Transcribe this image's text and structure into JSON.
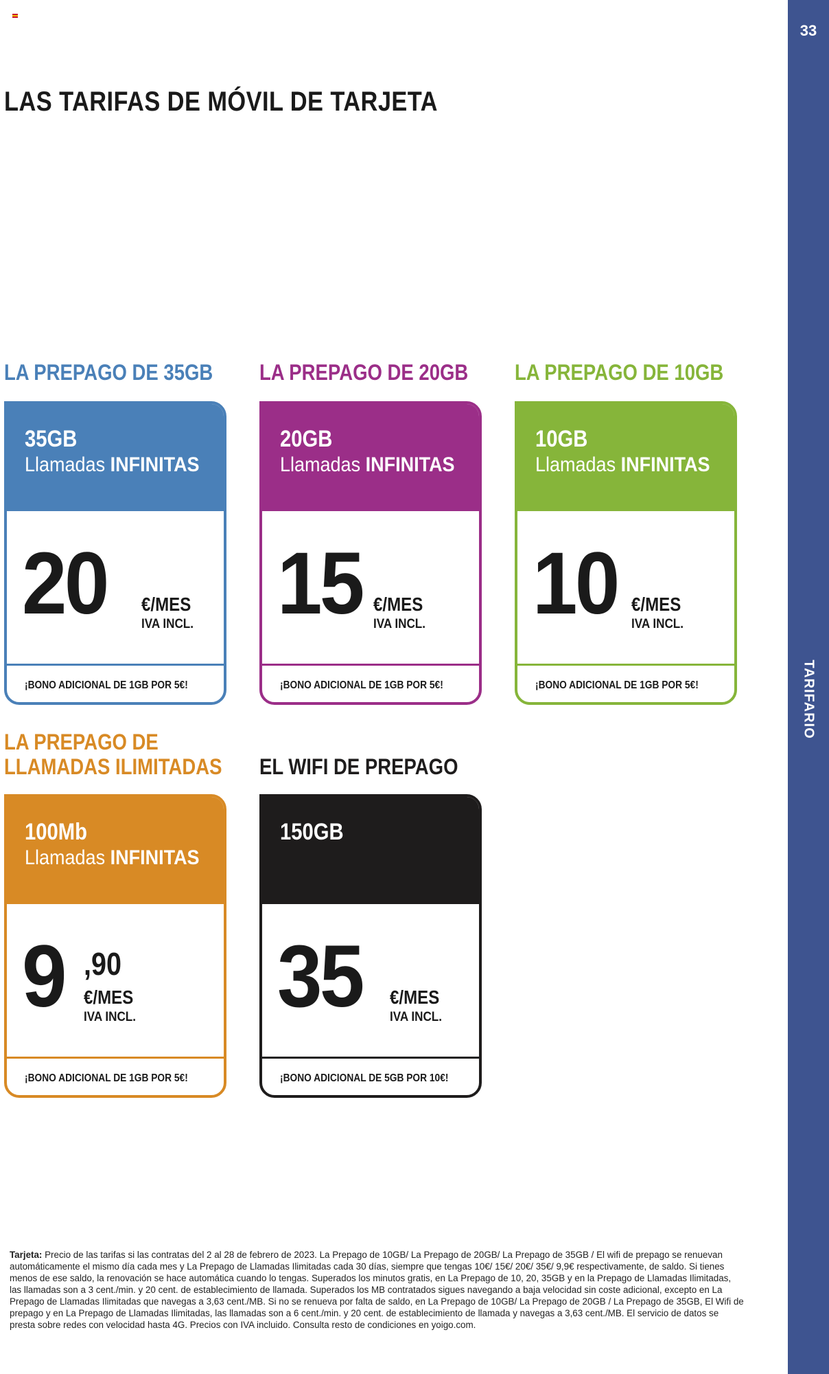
{
  "page": {
    "number": "33",
    "side_label": "TARIFARIO",
    "title": "LAS TARIFAS DE MÓVIL DE TARJETA"
  },
  "colors": {
    "sidebar": "#3e5490",
    "blue": "#4a80b8",
    "purple": "#9b2e88",
    "green": "#86b53a",
    "orange": "#d88a25",
    "black": "#1e1c1c"
  },
  "plans": [
    {
      "heading_line1": "LA PREPAGO DE 35GB",
      "heading_line2": "",
      "data": "35GB",
      "calls_prefix": "Llamadas",
      "calls_bold": "INFINITAS",
      "price": "20",
      "decimal": "",
      "unit": "€/MES",
      "vat": "IVA INCL.",
      "bonus": "¡BONO ADICIONAL DE 1GB POR 5€!",
      "color": "#4a80b8"
    },
    {
      "heading_line1": "LA PREPAGO DE 20GB",
      "heading_line2": "",
      "data": "20GB",
      "calls_prefix": "Llamadas",
      "calls_bold": "INFINITAS",
      "price": "15",
      "decimal": "",
      "unit": "€/MES",
      "vat": "IVA INCL.",
      "bonus": "¡BONO ADICIONAL DE 1GB POR 5€!",
      "color": "#9b2e88"
    },
    {
      "heading_line1": "LA PREPAGO DE 10GB",
      "heading_line2": "",
      "data": "10GB",
      "calls_prefix": "Llamadas",
      "calls_bold": "INFINITAS",
      "price": "10",
      "decimal": "",
      "unit": "€/MES",
      "vat": "IVA INCL.",
      "bonus": "¡BONO ADICIONAL DE 1GB POR 5€!",
      "color": "#86b53a"
    },
    {
      "heading_line1": "LA PREPAGO DE",
      "heading_line2": "LLAMADAS ILIMITADAS",
      "data": "100Mb",
      "calls_prefix": "Llamadas",
      "calls_bold": "INFINITAS",
      "price": "9",
      "decimal": ",90",
      "unit": "€/MES",
      "vat": "IVA INCL.",
      "bonus": "¡BONO ADICIONAL DE 1GB POR 5€!",
      "color": "#d88a25"
    },
    {
      "heading_line1": "EL WIFI DE PREPAGO",
      "heading_line2": "",
      "data": "150GB",
      "calls_prefix": "",
      "calls_bold": "",
      "price": "35",
      "decimal": "",
      "unit": "€/MES",
      "vat": "IVA INCL.",
      "bonus": "¡BONO ADICIONAL DE 5GB POR 10€!",
      "color": "#1e1c1c"
    }
  ],
  "footnote": {
    "label": "Tarjeta:",
    "text": "Precio de las tarifas si las contratas del 2 al 28 de febrero de 2023. La Prepago de 10GB/ La Prepago de 20GB/ La Prepago de 35GB / El wifi de prepago se renuevan automáticamente el mismo día cada mes y La Prepago de Llamadas Ilimitadas cada 30 días, siempre que tengas 10€/ 15€/ 20€/ 35€/ 9,9€ respectivamente, de saldo. Si tienes menos de ese saldo, la renovación se hace automática cuando lo tengas. Superados los minutos gratis, en La Prepago de 10, 20, 35GB y en la Prepago de Llamadas Ilimitadas, las llamadas son a 3 cent./min. y 20 cent. de establecimiento de llamada. Superados los MB contratados sigues navegando a baja velocidad sin coste adicional, excepto en La Prepago de Llamadas Ilimitadas que navegas a 3,63 cent./MB. Si no se renueva por falta de saldo, en La Prepago de 10GB/ La Prepago de 20GB / La Prepago de 35GB, El Wifi de prepago y en La Prepago de Llamadas Ilimitadas, las llamadas son a 6 cent./min. y 20 cent. de establecimiento de llamada y navegas a 3,63 cent./MB. El servicio de datos se presta sobre redes con velocidad hasta 4G. Precios con IVA incluido. Consulta resto de condiciones en yoigo.com."
  }
}
